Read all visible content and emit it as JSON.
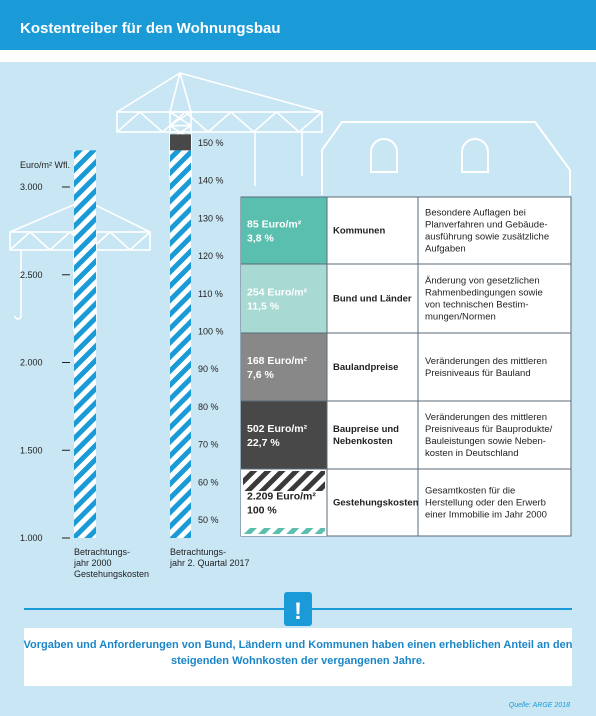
{
  "title": "Kostentreiber für den Wohnungsbau",
  "colors": {
    "header_bg": "#1a9ad6",
    "panel_bg": "#c9e6f4",
    "line_blue": "#1a9ad6",
    "seg_kommunen": "#5bbfb0",
    "seg_bund": "#a8dad3",
    "seg_bauland": "#888888",
    "seg_baupreise": "#484848",
    "text_dark": "#222222",
    "footer_text": "#1a86c8"
  },
  "chart_data": {
    "type": "bar",
    "ylabel": "Euro/m² Wfl.",
    "left_axis": {
      "min": 1000,
      "max": 3000,
      "ticks": [
        "1.000",
        "1.500",
        "2.000",
        "2.500",
        "3.000"
      ],
      "tick_values": [
        1000,
        1500,
        2000,
        2500,
        3000
      ]
    },
    "right_axis": {
      "min": 50,
      "max": 150,
      "ticks": [
        "50 %",
        "60 %",
        "70 %",
        "80 %",
        "90 %",
        "100 %",
        "110 %",
        "120 %",
        "130 %",
        "140 %",
        "150 %"
      ],
      "tick_values": [
        50,
        60,
        70,
        80,
        90,
        100,
        110,
        120,
        130,
        140,
        150
      ]
    },
    "categories": [
      "Betrachtungs-\njahr 2000\nGestehungskosten",
      "Betrachtungs-\njahr 2. Quartal 2017"
    ],
    "bars": [
      {
        "label": "Betrachtungs-jahr 2000 Gestehungskosten",
        "total": 2209,
        "segments": [
          {
            "key": "gestehung",
            "value": 2209
          }
        ]
      },
      {
        "label": "Betrachtungs-jahr 2. Quartal 2017",
        "total": 3218,
        "segments": [
          {
            "key": "gestehung",
            "value": 2209
          },
          {
            "key": "baupreise",
            "value": 502
          },
          {
            "key": "bauland",
            "value": 168
          },
          {
            "key": "bund",
            "value": 254
          },
          {
            "key": "kommunen",
            "value": 85
          }
        ]
      }
    ]
  },
  "rows": [
    {
      "key": "kommunen",
      "amount": "85 Euro/m²",
      "percent": "3,8 %",
      "category": "Kommunen",
      "desc": [
        "Besondere Auflagen bei",
        "Planverfahren und Gebäude-",
        "ausführung sowie zusätzliche",
        "Aufgaben"
      ]
    },
    {
      "key": "bund",
      "amount": "254 Euro/m²",
      "percent": "11,5 %",
      "category": "Bund und Länder",
      "desc": [
        "Änderung von gesetzlichen",
        "Rahmenbedingungen sowie",
        "von technischen Bestim-",
        "mungen/Normen"
      ]
    },
    {
      "key": "bauland",
      "amount": "168 Euro/m²",
      "percent": "7,6 %",
      "category": "Baulandpreise",
      "desc": [
        "Veränderungen des mittleren",
        "Preisniveaus für Bauland"
      ]
    },
    {
      "key": "baupreise",
      "amount": "502 Euro/m²",
      "percent": "22,7 %",
      "category_lines": [
        "Baupreise und",
        "Nebenkosten"
      ],
      "desc": [
        "Veränderungen des mittleren",
        "Preisniveaus für Bauprodukte/",
        "Bauleistungen sowie Neben-",
        "kosten in Deutschland"
      ]
    },
    {
      "key": "gestehung",
      "amount": "2.209 Euro/m²",
      "percent": "100 %",
      "category": "Gestehungskosten",
      "desc": [
        "Gesamtkosten für die",
        "Herstellung oder den Erwerb",
        "einer Immobilie im Jahr 2000"
      ]
    }
  ],
  "footer": {
    "icon": "exclamation-icon",
    "lines": [
      "Vorgaben und Anforderungen von Bund, Ländern und Kommunen haben einen erheblichen Anteil an den",
      "steigenden Wohnkosten der vergangenen Jahre."
    ]
  },
  "source": "Quelle: ARGE 2018"
}
